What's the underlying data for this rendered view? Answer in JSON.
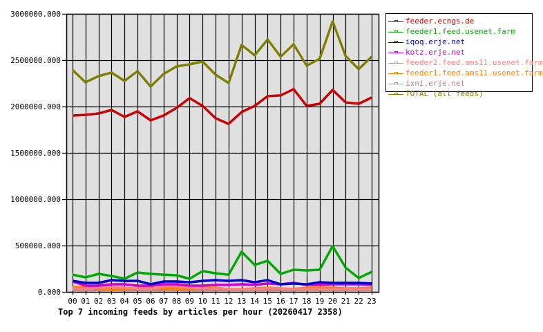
{
  "chart_data": {
    "type": "line",
    "title": "Top 7 incoming feeds by articles per hour (20260417 2358)",
    "xlabel": "",
    "ylabel": "",
    "ylim": [
      0,
      3000000
    ],
    "grid": true,
    "legend_position": "right",
    "y_ticks": [
      "0.000",
      "500000.000",
      "1000000.000",
      "1500000.000",
      "2000000.000",
      "2500000.000",
      "3000000.000"
    ],
    "y_tick_values": [
      0,
      500000,
      1000000,
      1500000,
      2000000,
      2500000,
      3000000
    ],
    "categories": [
      "00",
      "01",
      "02",
      "03",
      "04",
      "05",
      "06",
      "07",
      "08",
      "09",
      "10",
      "11",
      "12",
      "13",
      "14",
      "15",
      "16",
      "17",
      "18",
      "19",
      "20",
      "21",
      "22",
      "23"
    ],
    "series": [
      {
        "name": "feeder.ecngs.de",
        "color": "#cc0000",
        "values": [
          1903000,
          1910000,
          1925000,
          1963000,
          1888000,
          1948000,
          1851000,
          1903000,
          1985000,
          2090000,
          2007000,
          1873000,
          1813000,
          1940000,
          2007000,
          2112000,
          2120000,
          2187000,
          2007000,
          2030000,
          2179000,
          2045000,
          2030000,
          2097000
        ]
      },
      {
        "name": "feeder1.feed.usenet.farm",
        "color": "#00aa00",
        "values": [
          186000,
          157000,
          194000,
          172000,
          142000,
          209000,
          194000,
          186000,
          179000,
          142000,
          224000,
          201000,
          186000,
          433000,
          291000,
          336000,
          194000,
          239000,
          231000,
          239000,
          493000,
          261000,
          149000,
          216000
        ]
      },
      {
        "name": "iqoq.erje.net",
        "color": "#0000cc",
        "values": [
          119000,
          97000,
          97000,
          127000,
          119000,
          119000,
          82000,
          112000,
          112000,
          104000,
          119000,
          127000,
          119000,
          127000,
          104000,
          127000,
          82000,
          90000,
          82000,
          104000,
          97000,
          97000,
          97000,
          90000
        ]
      },
      {
        "name": "kotz.erje.net",
        "color": "#cc00cc",
        "values": [
          112000,
          67000,
          67000,
          82000,
          82000,
          67000,
          67000,
          82000,
          82000,
          67000,
          67000,
          75000,
          75000,
          82000,
          75000,
          90000,
          82000,
          97000,
          75000,
          75000,
          82000,
          82000,
          82000,
          75000
        ]
      },
      {
        "name": "feeder2.feed.ams11.usenet.farm",
        "color": "#ff8080",
        "values": [
          37000,
          30000,
          45000,
          52000,
          45000,
          37000,
          30000,
          60000,
          60000,
          45000,
          37000,
          37000,
          30000,
          30000,
          30000,
          37000,
          37000,
          30000,
          30000,
          30000,
          30000,
          30000,
          30000,
          30000
        ]
      },
      {
        "name": "feeder1.feed.ams11.usenet.farm",
        "color": "#ff8000",
        "values": [
          52000,
          52000,
          37000,
          22000,
          30000,
          45000,
          45000,
          37000,
          37000,
          30000,
          45000,
          45000,
          30000,
          30000,
          37000,
          45000,
          37000,
          30000,
          45000,
          45000,
          45000,
          37000,
          37000,
          45000
        ]
      },
      {
        "name": "ixni.erje.net",
        "color": "#c08080",
        "values": [
          22000,
          22000,
          22000,
          22000,
          22000,
          22000,
          22000,
          22000,
          22000,
          22000,
          22000,
          22000,
          22000,
          22000,
          22000,
          22000,
          22000,
          22000,
          22000,
          22000,
          22000,
          22000,
          22000,
          22000
        ]
      },
      {
        "name": "TOTAL (all feeds)",
        "color": "#808000",
        "values": [
          2395000,
          2261000,
          2328000,
          2366000,
          2276000,
          2381000,
          2216000,
          2351000,
          2433000,
          2455000,
          2485000,
          2343000,
          2254000,
          2664000,
          2552000,
          2724000,
          2537000,
          2672000,
          2440000,
          2515000,
          2918000,
          2545000,
          2403000,
          2537000
        ]
      }
    ]
  },
  "legend": {
    "items": [
      {
        "label": "feeder.ecngs.de",
        "color": "#cc0000"
      },
      {
        "label": "feeder1.feed.usenet.farm",
        "color": "#00aa00"
      },
      {
        "label": "iqoq.erje.net",
        "color": "#0000cc"
      },
      {
        "label": "kotz.erje.net",
        "color": "#cc00cc"
      },
      {
        "label": "feeder2.feed.ams11.usenet.farm",
        "color": "#ff8080"
      },
      {
        "label": "feeder1.feed.ams11.usenet.farm",
        "color": "#ff8000"
      },
      {
        "label": "ixni.erje.net",
        "color": "#c08080"
      },
      {
        "label": "TOTAL (all feeds)",
        "color": "#808000"
      }
    ]
  },
  "colors": {
    "plot_background": "#e0e0e0",
    "grid": "#000000",
    "axis": "#000000"
  }
}
